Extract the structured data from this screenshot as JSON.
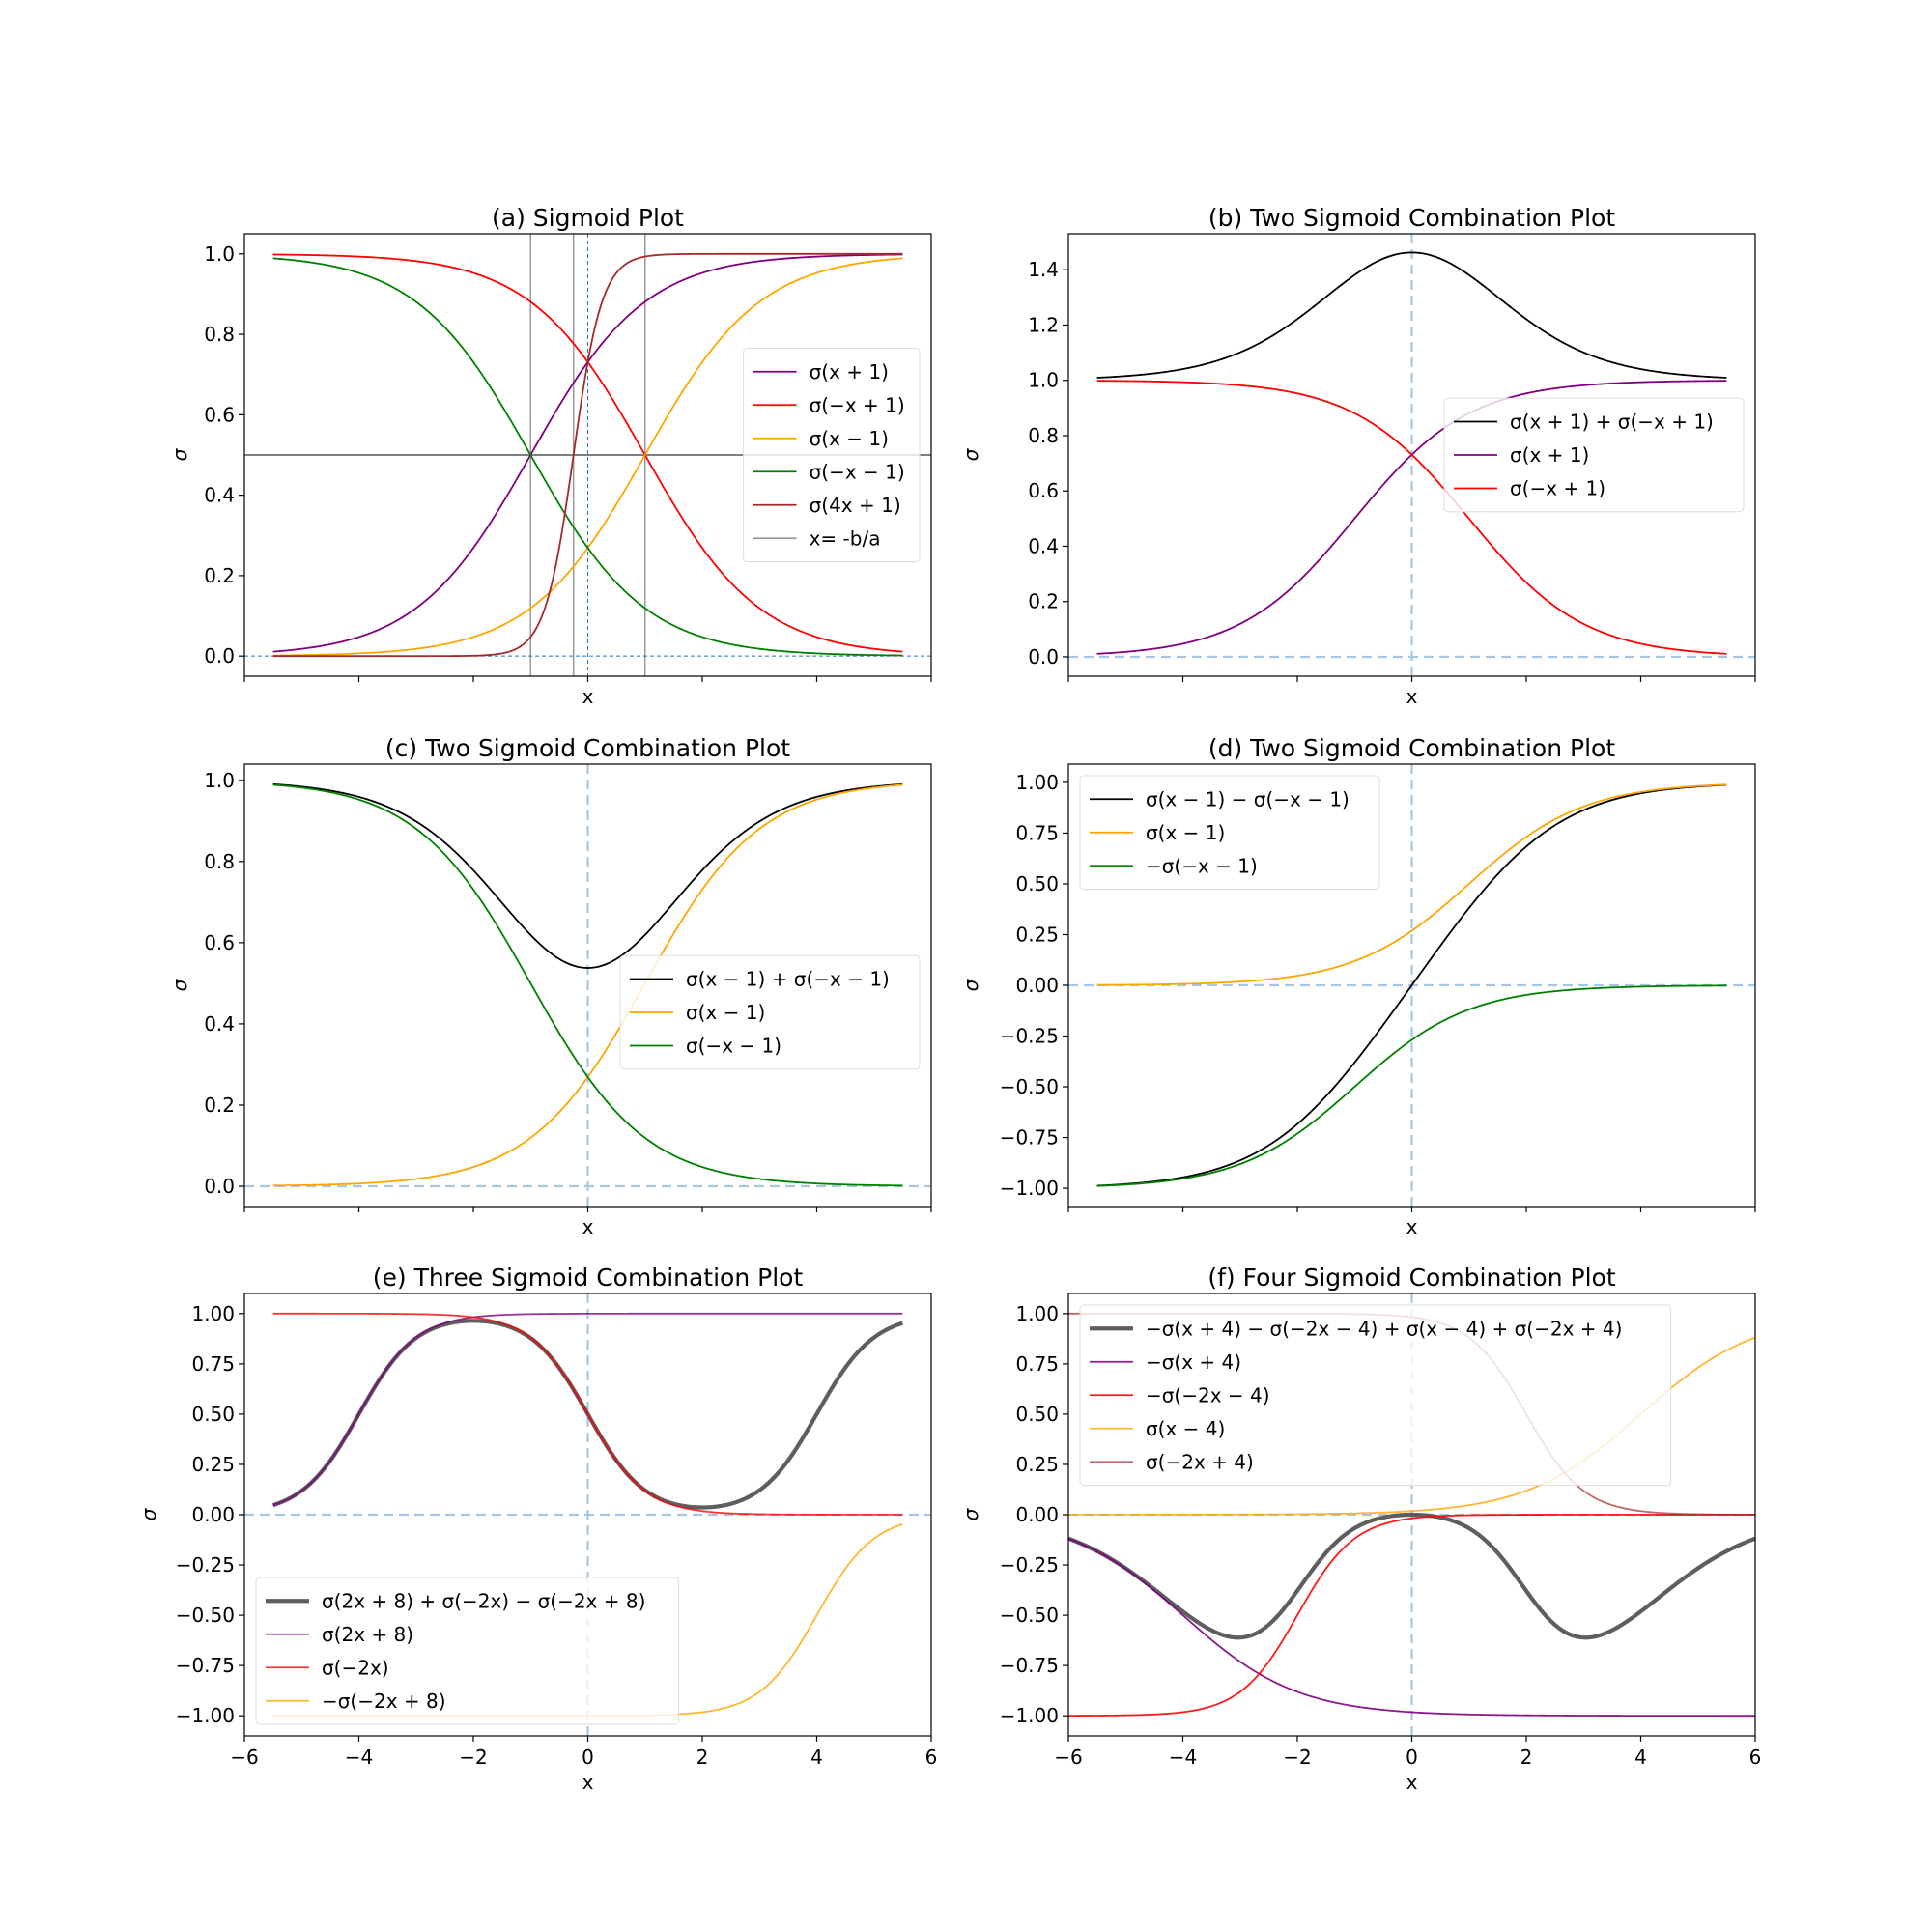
{
  "figure": {
    "background": "#ffffff"
  },
  "chart_data": [
    {
      "type": "line",
      "title": "(a) Sigmoid Plot",
      "xlabel": "x",
      "ylabel": "σ",
      "xlim": [
        -6,
        6
      ],
      "ylim": [
        -0.05,
        1.05
      ],
      "yticks": [
        0.0,
        0.2,
        0.4,
        0.6,
        0.8,
        1.0
      ],
      "ytick_labels": [
        "0.0",
        "0.2",
        "0.4",
        "0.6",
        "0.8",
        "1.0"
      ],
      "xticks": [
        -6,
        -4,
        -2,
        0,
        2,
        4,
        6
      ],
      "xtick_labels": [],
      "legend_position": "center-right",
      "x_range": [
        -5.5,
        5.5
      ],
      "series": [
        {
          "name": "σ(x + 1)",
          "color": "#800080",
          "width": 1.8,
          "terms": [
            {
              "sign": 1,
              "a": 1,
              "b": 1
            }
          ]
        },
        {
          "name": "σ(−x + 1)",
          "color": "#ff0000",
          "width": 1.8,
          "terms": [
            {
              "sign": 1,
              "a": -1,
              "b": 1
            }
          ]
        },
        {
          "name": "σ(x − 1)",
          "color": "#ffa500",
          "width": 1.8,
          "terms": [
            {
              "sign": 1,
              "a": 1,
              "b": -1
            }
          ]
        },
        {
          "name": "σ(−x − 1)",
          "color": "#008000",
          "width": 1.8,
          "terms": [
            {
              "sign": 1,
              "a": -1,
              "b": -1
            }
          ]
        },
        {
          "name": "σ(4x + 1)",
          "color": "#a52a2a",
          "width": 1.8,
          "terms": [
            {
              "sign": 1,
              "a": 4,
              "b": 1
            }
          ]
        }
      ],
      "vlines": [
        {
          "x": -1,
          "color": "#999999",
          "width": 1.5
        },
        {
          "x": -0.25,
          "color": "#999999",
          "width": 1.5
        },
        {
          "x": 1,
          "color": "#999999",
          "width": 1.5
        },
        {
          "x": 0,
          "color": "#1f77b4",
          "width": 1,
          "dash": "4,3"
        }
      ],
      "hlines": [
        {
          "y": 0.5,
          "color": "#555555",
          "width": 1.5
        },
        {
          "y": 0,
          "color": "#1f77b4",
          "width": 1,
          "dash": "4,3"
        }
      ],
      "legend_extra": [
        {
          "name": "x= -b/a",
          "color": "#999999"
        }
      ]
    },
    {
      "type": "line",
      "title": "(b) Two Sigmoid Combination Plot",
      "xlabel": "x",
      "ylabel": "σ",
      "xlim": [
        -6,
        6
      ],
      "ylim": [
        -0.07,
        1.53
      ],
      "yticks": [
        0.0,
        0.2,
        0.4,
        0.6,
        0.8,
        1.0,
        1.2,
        1.4
      ],
      "ytick_labels": [
        "0.0",
        "0.2",
        "0.4",
        "0.6",
        "0.8",
        "1.0",
        "1.2",
        "1.4"
      ],
      "xticks": [
        -6,
        -4,
        -2,
        0,
        2,
        4,
        6
      ],
      "xtick_labels": [],
      "legend_position": "center-right",
      "x_range": [
        -5.5,
        5.5
      ],
      "series": [
        {
          "name": "σ(x + 1) + σ(−x + 1)",
          "color": "#000000",
          "width": 1.8,
          "terms": [
            {
              "sign": 1,
              "a": 1,
              "b": 1
            },
            {
              "sign": 1,
              "a": -1,
              "b": 1
            }
          ]
        },
        {
          "name": "σ(x + 1)",
          "color": "#800080",
          "width": 1.8,
          "terms": [
            {
              "sign": 1,
              "a": 1,
              "b": 1
            }
          ]
        },
        {
          "name": "σ(−x + 1)",
          "color": "#ff0000",
          "width": 1.8,
          "terms": [
            {
              "sign": 1,
              "a": -1,
              "b": 1
            }
          ]
        }
      ],
      "vlines": [
        {
          "x": 0,
          "color": "#a6c8e4",
          "width": 2.2,
          "dash": "10,6"
        }
      ],
      "hlines": [
        {
          "y": 0,
          "color": "#a6c8e4",
          "width": 2.2,
          "dash": "10,6"
        }
      ],
      "legend_extra": []
    },
    {
      "type": "line",
      "title": "(c) Two Sigmoid Combination Plot",
      "xlabel": "x",
      "ylabel": "σ",
      "xlim": [
        -6,
        6
      ],
      "ylim": [
        -0.05,
        1.04
      ],
      "yticks": [
        0.0,
        0.2,
        0.4,
        0.6,
        0.8,
        1.0
      ],
      "ytick_labels": [
        "0.0",
        "0.2",
        "0.4",
        "0.6",
        "0.8",
        "1.0"
      ],
      "xticks": [
        -6,
        -4,
        -2,
        0,
        2,
        4,
        6
      ],
      "xtick_labels": [],
      "legend_position": "center-right",
      "x_range": [
        -5.5,
        5.5
      ],
      "series": [
        {
          "name": "σ(x − 1) + σ(−x − 1)",
          "color": "#000000",
          "width": 1.8,
          "terms": [
            {
              "sign": 1,
              "a": 1,
              "b": -1
            },
            {
              "sign": 1,
              "a": -1,
              "b": -1
            }
          ]
        },
        {
          "name": "σ(x − 1)",
          "color": "#ffa500",
          "width": 1.8,
          "terms": [
            {
              "sign": 1,
              "a": 1,
              "b": -1
            }
          ]
        },
        {
          "name": "σ(−x − 1)",
          "color": "#008000",
          "width": 1.8,
          "terms": [
            {
              "sign": 1,
              "a": -1,
              "b": -1
            }
          ]
        }
      ],
      "vlines": [
        {
          "x": 0,
          "color": "#a6c8e4",
          "width": 2.2,
          "dash": "10,6"
        }
      ],
      "hlines": [
        {
          "y": 0,
          "color": "#a6c8e4",
          "width": 2.2,
          "dash": "10,6"
        }
      ],
      "legend_extra": []
    },
    {
      "type": "line",
      "title": "(d) Two Sigmoid Combination Plot",
      "xlabel": "x",
      "ylabel": "σ",
      "xlim": [
        -6,
        6
      ],
      "ylim": [
        -1.09,
        1.09
      ],
      "yticks": [
        -1.0,
        -0.75,
        -0.5,
        -0.25,
        0.0,
        0.25,
        0.5,
        0.75,
        1.0
      ],
      "ytick_labels": [
        "−1.00",
        "−0.75",
        "−0.50",
        "−0.25",
        "0.00",
        "0.25",
        "0.50",
        "0.75",
        "1.00"
      ],
      "xticks": [
        -6,
        -4,
        -2,
        0,
        2,
        4,
        6
      ],
      "xtick_labels": [],
      "legend_position": "top-left",
      "x_range": [
        -5.5,
        5.5
      ],
      "series": [
        {
          "name": "σ(x − 1) − σ(−x − 1)",
          "color": "#000000",
          "width": 1.8,
          "terms": [
            {
              "sign": 1,
              "a": 1,
              "b": -1
            },
            {
              "sign": -1,
              "a": -1,
              "b": -1
            }
          ]
        },
        {
          "name": "σ(x − 1)",
          "color": "#ffa500",
          "width": 1.8,
          "terms": [
            {
              "sign": 1,
              "a": 1,
              "b": -1
            }
          ]
        },
        {
          "name": "−σ(−x − 1)",
          "color": "#008000",
          "width": 1.8,
          "terms": [
            {
              "sign": -1,
              "a": -1,
              "b": -1
            }
          ]
        }
      ],
      "vlines": [
        {
          "x": 0,
          "color": "#a6c8e4",
          "width": 2.2,
          "dash": "10,6"
        }
      ],
      "hlines": [
        {
          "y": 0,
          "color": "#a6c8e4",
          "width": 2.2,
          "dash": "10,6"
        }
      ],
      "legend_extra": []
    },
    {
      "type": "line",
      "title": "(e) Three Sigmoid Combination Plot",
      "xlabel": "x",
      "ylabel": "σ",
      "xlim": [
        -6,
        6
      ],
      "ylim": [
        -1.1,
        1.1
      ],
      "yticks": [
        -1.0,
        -0.75,
        -0.5,
        -0.25,
        0.0,
        0.25,
        0.5,
        0.75,
        1.0
      ],
      "ytick_labels": [
        "−1.00",
        "−0.75",
        "−0.50",
        "−0.25",
        "0.00",
        "0.25",
        "0.50",
        "0.75",
        "1.00"
      ],
      "xticks": [
        -6,
        -4,
        -2,
        0,
        2,
        4,
        6
      ],
      "xtick_labels": [
        "−6",
        "−4",
        "−2",
        "0",
        "2",
        "4",
        "6"
      ],
      "legend_position": "bottom-left",
      "x_range": [
        -5.5,
        5.5
      ],
      "series": [
        {
          "name": "σ(2x + 8) + σ(−2x) − σ(−2x + 8)",
          "color": "#555555",
          "width": 4.2,
          "opacity": 0.95,
          "terms": [
            {
              "sign": 1,
              "a": 2,
              "b": 8
            },
            {
              "sign": 1,
              "a": -2,
              "b": 0
            },
            {
              "sign": -1,
              "a": -2,
              "b": 8
            }
          ]
        },
        {
          "name": "σ(2x + 8)",
          "color": "#800080",
          "width": 1.8,
          "opacity": 0.8,
          "terms": [
            {
              "sign": 1,
              "a": 2,
              "b": 8
            }
          ]
        },
        {
          "name": "σ(−2x)",
          "color": "#ff0000",
          "width": 1.8,
          "opacity": 0.8,
          "terms": [
            {
              "sign": 1,
              "a": -2,
              "b": 0
            }
          ]
        },
        {
          "name": "−σ(−2x + 8)",
          "color": "#ffa500",
          "width": 1.8,
          "opacity": 0.8,
          "terms": [
            {
              "sign": -1,
              "a": -2,
              "b": 8
            }
          ]
        }
      ],
      "vlines": [
        {
          "x": 0,
          "color": "#a6c8e4",
          "width": 2.2,
          "dash": "10,6"
        }
      ],
      "hlines": [
        {
          "y": 0,
          "color": "#a6c8e4",
          "width": 2.2,
          "dash": "10,6"
        }
      ],
      "legend_extra": []
    },
    {
      "type": "line",
      "title": "(f) Four Sigmoid Combination Plot",
      "xlabel": "x",
      "ylabel": "σ",
      "xlim": [
        -6,
        6
      ],
      "ylim": [
        -1.1,
        1.1
      ],
      "yticks": [
        -1.0,
        -0.75,
        -0.5,
        -0.25,
        0.0,
        0.25,
        0.5,
        0.75,
        1.0
      ],
      "ytick_labels": [
        "−1.00",
        "−0.75",
        "−0.50",
        "−0.25",
        "0.00",
        "0.25",
        "0.50",
        "0.75",
        "1.00"
      ],
      "xticks": [
        -6,
        -4,
        -2,
        0,
        2,
        4,
        6
      ],
      "xtick_labels": [
        "−6",
        "−4",
        "−2",
        "0",
        "2",
        "4",
        "6"
      ],
      "legend_position": "top-left",
      "x_range": [
        -6,
        6
      ],
      "series": [
        {
          "name": "−σ(x + 4) − σ(−2x − 4) + σ(x − 4) + σ(−2x + 4)",
          "color": "#555555",
          "width": 4.2,
          "opacity": 0.95,
          "terms": [
            {
              "sign": -1,
              "a": 1,
              "b": 4
            },
            {
              "sign": -1,
              "a": -2,
              "b": -4
            },
            {
              "sign": 1,
              "a": 1,
              "b": -4
            },
            {
              "sign": 1,
              "a": -2,
              "b": 4
            }
          ]
        },
        {
          "name": "−σ(x + 4)",
          "color": "#800080",
          "width": 1.8,
          "opacity": 0.9,
          "terms": [
            {
              "sign": -1,
              "a": 1,
              "b": 4
            }
          ]
        },
        {
          "name": "−σ(−2x − 4)",
          "color": "#ff0000",
          "width": 1.8,
          "opacity": 0.9,
          "terms": [
            {
              "sign": -1,
              "a": -2,
              "b": -4
            }
          ]
        },
        {
          "name": "σ(x − 4)",
          "color": "#ffa500",
          "width": 1.8,
          "opacity": 0.8,
          "terms": [
            {
              "sign": 1,
              "a": 1,
              "b": -4
            }
          ]
        },
        {
          "name": "σ(−2x + 4)",
          "color": "#a52a2a",
          "width": 1.8,
          "opacity": 0.7,
          "terms": [
            {
              "sign": 1,
              "a": -2,
              "b": 4
            }
          ]
        }
      ],
      "vlines": [
        {
          "x": 0,
          "color": "#a6c8e4",
          "width": 2.2,
          "dash": "10,6"
        }
      ],
      "hlines": [
        {
          "y": 0,
          "color": "#a6c8e4",
          "width": 2.2,
          "dash": "10,6"
        }
      ],
      "legend_extra": []
    }
  ]
}
